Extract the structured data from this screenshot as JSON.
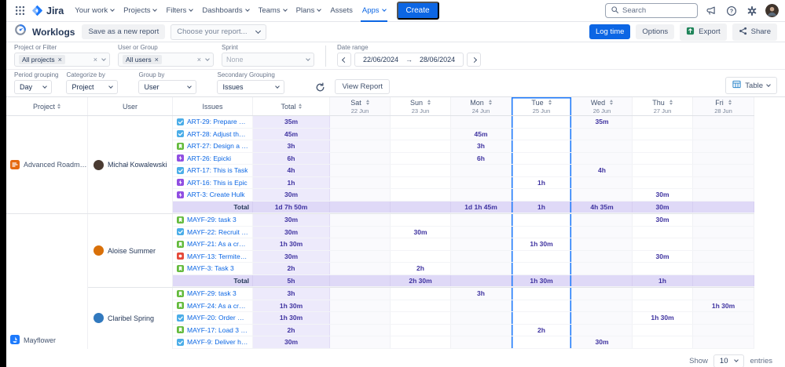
{
  "nav": {
    "brand": "Jira",
    "items": [
      {
        "label": "Your work",
        "caret": true,
        "active": false
      },
      {
        "label": "Projects",
        "caret": true,
        "active": false
      },
      {
        "label": "Filters",
        "caret": true,
        "active": false
      },
      {
        "label": "Dashboards",
        "caret": true,
        "active": false
      },
      {
        "label": "Teams",
        "caret": true,
        "active": false
      },
      {
        "label": "Plans",
        "caret": true,
        "active": false
      },
      {
        "label": "Assets",
        "caret": false,
        "active": false
      },
      {
        "label": "Apps",
        "caret": true,
        "active": true
      }
    ],
    "create_label": "Create",
    "search_placeholder": "Search"
  },
  "toolbar": {
    "title": "Worklogs",
    "save_report_label": "Save as a new report",
    "report_placeholder": "Choose your report...",
    "log_time_label": "Log time",
    "options_label": "Options",
    "export_label": "Export",
    "share_label": "Share"
  },
  "filters": {
    "project": {
      "label": "Project or Filter",
      "chip": "All projects"
    },
    "user": {
      "label": "User or Group",
      "chip": "All users"
    },
    "sprint": {
      "label": "Sprint",
      "value": "None"
    },
    "date_range": {
      "label": "Date range",
      "from": "22/06/2024",
      "separator": "→",
      "to": "28/06/2024"
    },
    "period": {
      "label": "Period grouping",
      "value": "Day"
    },
    "categorize": {
      "label": "Categorize by",
      "value": "Project"
    },
    "group": {
      "label": "Group by",
      "value": "User"
    },
    "secondary": {
      "label": "Secondary Grouping",
      "value": "Issues"
    },
    "view_report_label": "View Report",
    "view_mode_label": "Table"
  },
  "table": {
    "headers": {
      "project": "Project",
      "user": "User",
      "issues": "Issues",
      "total": "Total"
    },
    "total_label": "Total",
    "today_color": "#1D7AFC",
    "days": [
      {
        "name": "Sat",
        "date": "22 Jun",
        "today": false
      },
      {
        "name": "Sun",
        "date": "23 Jun",
        "today": false
      },
      {
        "name": "Mon",
        "date": "24 Jun",
        "today": false
      },
      {
        "name": "Tue",
        "date": "25 Jun",
        "today": true
      },
      {
        "name": "Wed",
        "date": "26 Jun",
        "today": false
      },
      {
        "name": "Thu",
        "date": "27 Jun",
        "today": false
      },
      {
        "name": "Fri",
        "date": "28 Jun",
        "today": false
      }
    ],
    "projects": [
      {
        "name": "Advanced Roadmaps ...",
        "icon": "roadmap",
        "icon_color": "#E56910",
        "users": [
          {
            "name": "Michał Kowalewski",
            "avatar_color": "#4A3B32",
            "rows": [
              {
                "issue": "ART-29: Prepare a tool ...",
                "type": "task",
                "total": "35m",
                "cells": [
                  "",
                  "",
                  "",
                  "",
                  "35m",
                  "",
                  ""
                ]
              },
              {
                "issue": "ART-28: Adjust the colu...",
                "type": "task",
                "total": "45m",
                "cells": [
                  "",
                  "",
                  "45m",
                  "",
                  "",
                  "",
                  ""
                ]
              },
              {
                "issue": "ART-27: Design a story",
                "type": "story",
                "total": "3h",
                "cells": [
                  "",
                  "",
                  "3h",
                  "",
                  "",
                  "",
                  ""
                ]
              },
              {
                "issue": "ART-26: Epicki",
                "type": "epic",
                "total": "6h",
                "cells": [
                  "",
                  "",
                  "6h",
                  "",
                  "",
                  "",
                  ""
                ]
              },
              {
                "issue": "ART-17: This is Task",
                "type": "task",
                "total": "4h",
                "cells": [
                  "",
                  "",
                  "",
                  "",
                  "4h",
                  "",
                  ""
                ]
              },
              {
                "issue": "ART-16: This is Epic",
                "type": "epic",
                "total": "1h",
                "cells": [
                  "",
                  "",
                  "",
                  "1h",
                  "",
                  "",
                  ""
                ]
              },
              {
                "issue": "ART-3: Create Hulk",
                "type": "epic",
                "total": "30m",
                "cells": [
                  "",
                  "",
                  "",
                  "",
                  "",
                  "30m",
                  ""
                ]
              }
            ],
            "total": {
              "total": "1d 7h 50m",
              "cells": [
                "",
                "",
                "1d 1h 45m",
                "1h",
                "4h 35m",
                "30m",
                ""
              ]
            }
          }
        ]
      },
      {
        "name": "Mayflower",
        "icon": "sailboat",
        "icon_color": "#1D7AFC",
        "users": [
          {
            "name": "Aloise Summer",
            "avatar_color": "#D97008",
            "rows": [
              {
                "issue": "MAYF-29: task 3",
                "type": "story",
                "total": "30m",
                "cells": [
                  "",
                  "",
                  "",
                  "",
                  "",
                  "30m",
                  ""
                ]
              },
              {
                "issue": "MAYF-22: Recruit needl...",
                "type": "task",
                "total": "30m",
                "cells": [
                  "",
                  "30m",
                  "",
                  "",
                  "",
                  "",
                  ""
                ]
              },
              {
                "issue": "MAYF-21: As a crew me...",
                "type": "story",
                "total": "1h 30m",
                "cells": [
                  "",
                  "",
                  "",
                  "1h 30m",
                  "",
                  "",
                  ""
                ]
              },
              {
                "issue": "MAYF-13: Termites on ...",
                "type": "bug",
                "total": "30m",
                "cells": [
                  "",
                  "",
                  "",
                  "",
                  "",
                  "30m",
                  ""
                ]
              },
              {
                "issue": "MAYF-3: Task 3",
                "type": "story",
                "total": "2h",
                "cells": [
                  "",
                  "2h",
                  "",
                  "",
                  "",
                  "",
                  ""
                ]
              }
            ],
            "total": {
              "total": "5h",
              "cells": [
                "",
                "2h 30m",
                "",
                "1h 30m",
                "",
                "1h",
                ""
              ]
            }
          },
          {
            "name": "Claribel Spring",
            "avatar_color": "#3179BE",
            "rows": [
              {
                "issue": "MAYF-29: task 3",
                "type": "story",
                "total": "3h",
                "cells": [
                  "",
                  "",
                  "3h",
                  "",
                  "",
                  "",
                  ""
                ]
              },
              {
                "issue": "MAYF-24: As a crew me...",
                "type": "story",
                "total": "1h 30m",
                "cells": [
                  "",
                  "",
                  "",
                  "",
                  "",
                  "",
                  "1h 30m"
                ]
              },
              {
                "issue": "MAYF-20: Order materi...",
                "type": "task",
                "total": "1h 30m",
                "cells": [
                  "",
                  "",
                  "",
                  "",
                  "",
                  "1h 30m",
                  ""
                ]
              },
              {
                "issue": "MAYF-17: Load 3 barrel...",
                "type": "story",
                "total": "2h",
                "cells": [
                  "",
                  "",
                  "",
                  "2h",
                  "",
                  "",
                  ""
                ]
              },
              {
                "issue": "MAYF-9: Deliver high q...",
                "type": "task",
                "total": "30m",
                "cells": [
                  "",
                  "",
                  "",
                  "",
                  "30m",
                  "",
                  ""
                ]
              }
            ],
            "total": null
          }
        ]
      }
    ]
  },
  "pagination": {
    "show_label": "Show",
    "page_size": "10",
    "entries_label": "entries"
  }
}
